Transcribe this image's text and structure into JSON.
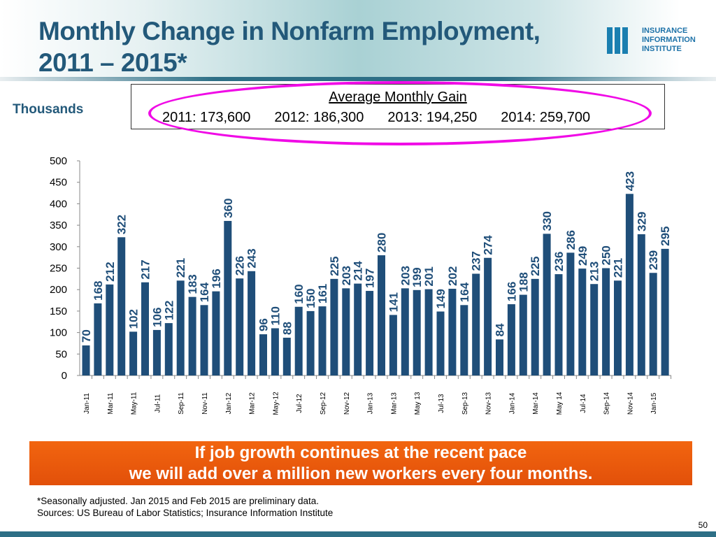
{
  "header": {
    "title_line1": "Monthly Change in Nonfarm Employment,",
    "title_line2": "2011 – 2015*",
    "logo_lines": [
      "INSURANCE",
      "INFORMATION",
      "INSTITUTE"
    ]
  },
  "units_label": "Thousands",
  "average_box": {
    "title": "Average Monthly Gain",
    "items": [
      "2011: 173,600",
      "2012: 186,300",
      "2013: 194,250",
      "2014: 259,700"
    ]
  },
  "colors": {
    "bar": "#1f4e79",
    "banner": "#e8580c",
    "highlight": "#f00ae6"
  },
  "chart_data": {
    "type": "bar",
    "title": "Monthly Change in Nonfarm Employment, 2011 – 2015*",
    "ylabel": "Thousands",
    "ylim": [
      0,
      500
    ],
    "yticks": [
      0,
      50,
      100,
      150,
      200,
      250,
      300,
      350,
      400,
      450,
      500
    ],
    "xtick_labels": [
      "Jan-11",
      "Mar-11",
      "May-11",
      "Jul-11",
      "Sep-11",
      "Nov-11",
      "Jan-12",
      "Mar-12",
      "May-12",
      "Jul-12",
      "Sep-12",
      "Nov-12",
      "Jan-13",
      "Mar-13",
      "May 13",
      "Jul-13",
      "Sep-13",
      "Nov-13",
      "Jan-14",
      "Mar-14",
      "May 14",
      "Jul-14",
      "Sep-14",
      "Nov-14",
      "Jan-15"
    ],
    "values": [
      70,
      168,
      212,
      322,
      102,
      217,
      106,
      122,
      221,
      183,
      164,
      196,
      360,
      226,
      243,
      96,
      110,
      88,
      160,
      150,
      161,
      225,
      203,
      214,
      197,
      280,
      141,
      203,
      199,
      201,
      149,
      202,
      164,
      237,
      274,
      84,
      166,
      188,
      225,
      330,
      236,
      286,
      249,
      213,
      250,
      221,
      423,
      329,
      239,
      295
    ]
  },
  "banner": {
    "line1": "If job growth continues at the recent pace",
    "line2": "we will add over a million new workers every four months."
  },
  "footnotes": [
    "*Seasonally adjusted. Jan 2015 and Feb 2015 are preliminary data.",
    "Sources: US Bureau of Labor Statistics; Insurance Information Institute"
  ],
  "page_number": "50"
}
